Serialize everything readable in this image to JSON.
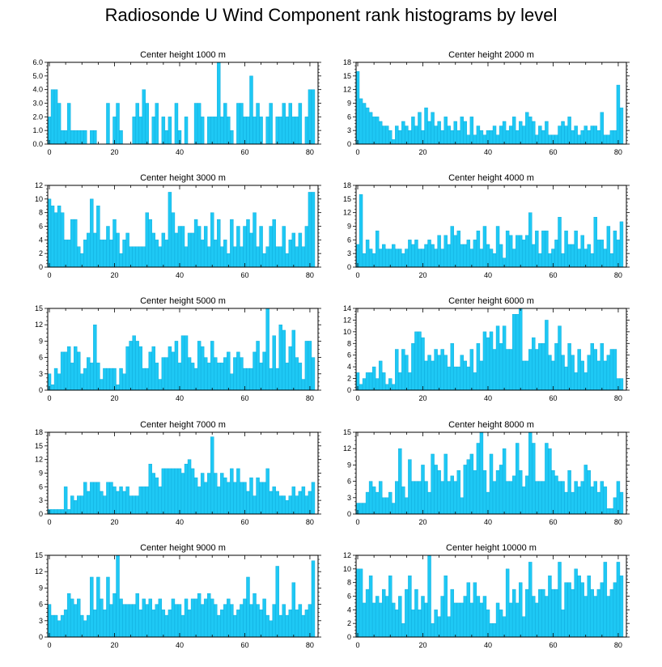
{
  "title": "Radiosonde U Wind Component rank histograms by level",
  "colors": {
    "bar": "#1ec8f4",
    "bar_edge": "#0aa7d8",
    "axis": "#000000"
  },
  "chart_data": [
    {
      "type": "bar",
      "title": "Center height 1000 m",
      "xticks": [
        0,
        20,
        40,
        60,
        80
      ],
      "ylim": [
        0,
        6
      ],
      "yticks": [
        0,
        1,
        2,
        3,
        4,
        5,
        6
      ],
      "ytick_labels": [
        "0.0",
        "1.0",
        "2.0",
        "3.0",
        "4.0",
        "5.0",
        "6.0"
      ],
      "values": [
        2,
        4,
        4,
        3,
        1,
        1,
        3,
        1,
        1,
        1,
        1,
        1,
        0,
        1,
        1,
        0,
        0,
        0,
        3,
        0,
        2,
        3,
        1,
        0,
        0,
        0,
        2,
        3,
        2,
        4,
        3,
        0,
        2,
        3,
        0,
        2,
        1,
        2,
        0,
        3,
        1,
        0,
        2,
        0,
        0,
        3,
        3,
        2,
        0,
        2,
        2,
        2,
        6,
        2,
        3,
        2,
        1,
        0,
        3,
        3,
        2,
        2,
        5,
        2,
        3,
        2,
        0,
        2,
        3,
        0,
        2,
        2,
        3,
        2,
        3,
        2,
        2,
        3,
        0,
        2,
        4,
        4
      ]
    },
    {
      "type": "bar",
      "title": "Center height 2000 m",
      "xticks": [
        0,
        20,
        40,
        60,
        80
      ],
      "ylim": [
        0,
        18
      ],
      "yticks": [
        0,
        3,
        6,
        9,
        12,
        15,
        18
      ],
      "values": [
        16,
        10,
        9,
        8,
        7,
        6,
        6,
        5,
        4,
        4,
        3,
        1,
        4,
        3,
        5,
        4,
        3,
        6,
        4,
        7,
        3,
        8,
        5,
        7,
        4,
        5,
        3,
        6,
        4,
        3,
        5,
        3,
        6,
        5,
        2,
        6,
        2,
        4,
        3,
        2,
        3,
        3,
        4,
        2,
        4,
        5,
        3,
        4,
        6,
        3,
        5,
        4,
        7,
        6,
        5,
        2,
        4,
        3,
        5,
        2,
        2,
        2,
        4,
        5,
        4,
        6,
        3,
        4,
        2,
        3,
        4,
        3,
        4,
        4,
        3,
        7,
        2,
        2,
        3,
        3,
        13,
        8
      ]
    },
    {
      "type": "bar",
      "title": "Center height 3000 m",
      "xticks": [
        0,
        20,
        40,
        60,
        80
      ],
      "ylim": [
        0,
        12
      ],
      "yticks": [
        0,
        2,
        4,
        6,
        8,
        10,
        12
      ],
      "values": [
        10,
        9,
        8,
        9,
        8,
        4,
        4,
        7,
        7,
        3,
        2,
        4,
        5,
        10,
        5,
        9,
        4,
        4,
        6,
        4,
        7,
        5,
        2,
        4,
        5,
        3,
        3,
        3,
        3,
        3,
        8,
        7,
        5,
        4,
        3,
        5,
        4,
        11,
        8,
        5,
        6,
        6,
        3,
        5,
        5,
        7,
        6,
        4,
        6,
        3,
        8,
        4,
        7,
        3,
        4,
        2,
        7,
        3,
        6,
        3,
        6,
        7,
        5,
        8,
        3,
        6,
        2,
        3,
        6,
        7,
        3,
        3,
        6,
        2,
        4,
        5,
        3,
        5,
        3,
        6,
        11,
        11
      ]
    },
    {
      "type": "bar",
      "title": "Center height 4000 m",
      "xticks": [
        0,
        20,
        40,
        60,
        80
      ],
      "ylim": [
        0,
        18
      ],
      "yticks": [
        0,
        3,
        6,
        9,
        12,
        15,
        18
      ],
      "values": [
        5,
        16,
        3,
        6,
        4,
        3,
        8,
        4,
        5,
        4,
        4,
        5,
        4,
        4,
        3,
        4,
        6,
        5,
        6,
        4,
        4,
        5,
        6,
        5,
        4,
        7,
        4,
        7,
        5,
        9,
        7,
        8,
        5,
        5,
        6,
        4,
        6,
        8,
        4,
        9,
        5,
        4,
        3,
        9,
        5,
        2,
        8,
        7,
        4,
        7,
        7,
        6,
        7,
        12,
        5,
        8,
        3,
        8,
        8,
        3,
        4,
        6,
        11,
        3,
        8,
        5,
        5,
        8,
        4,
        7,
        4,
        5,
        3,
        11,
        6,
        6,
        4,
        9,
        3,
        8,
        6,
        10
      ]
    },
    {
      "type": "bar",
      "title": "Center height 5000 m",
      "xticks": [
        0,
        20,
        40,
        60,
        80
      ],
      "ylim": [
        0,
        15
      ],
      "yticks": [
        0,
        3,
        6,
        9,
        12,
        15
      ],
      "values": [
        3,
        1,
        4,
        3,
        7,
        7,
        8,
        5,
        8,
        7,
        3,
        4,
        6,
        5,
        12,
        5,
        2,
        4,
        4,
        4,
        4,
        1,
        4,
        3,
        8,
        9,
        10,
        9,
        8,
        4,
        4,
        7,
        8,
        5,
        2,
        6,
        6,
        8,
        7,
        9,
        5,
        10,
        10,
        6,
        5,
        4,
        9,
        8,
        6,
        5,
        9,
        6,
        5,
        5,
        6,
        7,
        3,
        6,
        7,
        6,
        4,
        4,
        4,
        7,
        9,
        5,
        7,
        15,
        4,
        10,
        4,
        12,
        11,
        5,
        8,
        11,
        6,
        5,
        2,
        9,
        9,
        6
      ]
    },
    {
      "type": "bar",
      "title": "Center height 6000 m",
      "xticks": [
        0,
        20,
        40,
        60,
        80
      ],
      "ylim": [
        0,
        14
      ],
      "yticks": [
        0,
        2,
        4,
        6,
        8,
        10,
        12,
        14
      ],
      "values": [
        3,
        1,
        2,
        3,
        3,
        4,
        2,
        5,
        3,
        1,
        2,
        1,
        7,
        3,
        7,
        6,
        3,
        8,
        10,
        10,
        9,
        5,
        6,
        5,
        7,
        6,
        7,
        6,
        4,
        8,
        4,
        4,
        6,
        5,
        4,
        7,
        3,
        8,
        5,
        10,
        9,
        10,
        7,
        11,
        8,
        11,
        7,
        7,
        13,
        13,
        14,
        5,
        5,
        7,
        9,
        7,
        8,
        8,
        12,
        6,
        5,
        8,
        11,
        6,
        4,
        8,
        6,
        3,
        7,
        5,
        3,
        6,
        8,
        7,
        5,
        8,
        5,
        6,
        7,
        7,
        2,
        2
      ]
    },
    {
      "type": "bar",
      "title": "Center height 7000 m",
      "xticks": [
        0,
        20,
        40,
        60,
        80
      ],
      "ylim": [
        0,
        18
      ],
      "yticks": [
        0,
        3,
        6,
        9,
        12,
        15,
        18
      ],
      "values": [
        1,
        1,
        1,
        1,
        1,
        6,
        1,
        4,
        3,
        4,
        4,
        7,
        5,
        7,
        7,
        7,
        5,
        4,
        7,
        7,
        6,
        5,
        6,
        5,
        6,
        4,
        4,
        4,
        6,
        6,
        6,
        11,
        9,
        8,
        6,
        10,
        10,
        10,
        10,
        10,
        10,
        9,
        11,
        12,
        10,
        8,
        6,
        9,
        7,
        9,
        17,
        9,
        6,
        9,
        8,
        7,
        10,
        7,
        10,
        7,
        7,
        5,
        8,
        4,
        8,
        7,
        7,
        10,
        5,
        6,
        5,
        4,
        4,
        3,
        4,
        6,
        4,
        5,
        6,
        4,
        5,
        7
      ]
    },
    {
      "type": "bar",
      "title": "Center height 8000 m",
      "xticks": [
        0,
        20,
        40,
        60,
        80
      ],
      "ylim": [
        0,
        15
      ],
      "yticks": [
        0,
        3,
        6,
        9,
        12,
        15
      ],
      "values": [
        2,
        2,
        2,
        4,
        6,
        5,
        4,
        6,
        3,
        3,
        4,
        2,
        6,
        12,
        5,
        3,
        10,
        6,
        6,
        6,
        9,
        6,
        4,
        11,
        9,
        8,
        6,
        11,
        6,
        7,
        6,
        8,
        3,
        9,
        10,
        11,
        8,
        13,
        15,
        8,
        4,
        11,
        6,
        8,
        9,
        12,
        6,
        6,
        7,
        13,
        8,
        5,
        7,
        15,
        13,
        6,
        6,
        6,
        13,
        12,
        8,
        7,
        6,
        6,
        4,
        8,
        4,
        6,
        5,
        6,
        9,
        8,
        5,
        6,
        4,
        6,
        5,
        1,
        1,
        3,
        6,
        4
      ]
    },
    {
      "type": "bar",
      "title": "Center height 9000 m",
      "xticks": [
        0,
        20,
        40,
        60,
        80
      ],
      "ylim": [
        0,
        15
      ],
      "yticks": [
        0,
        3,
        6,
        9,
        12,
        15
      ],
      "values": [
        6,
        4,
        4,
        3,
        4,
        5,
        8,
        7,
        6,
        7,
        4,
        3,
        4,
        11,
        5,
        11,
        7,
        5,
        11,
        6,
        8,
        15,
        7,
        6,
        6,
        6,
        6,
        8,
        5,
        7,
        6,
        7,
        5,
        6,
        7,
        5,
        4,
        5,
        7,
        6,
        6,
        4,
        7,
        5,
        7,
        7,
        8,
        6,
        7,
        8,
        7,
        6,
        4,
        5,
        6,
        7,
        6,
        4,
        5,
        6,
        7,
        11,
        6,
        8,
        6,
        5,
        7,
        4,
        3,
        6,
        13,
        4,
        6,
        4,
        5,
        10,
        5,
        6,
        4,
        5,
        6,
        14
      ]
    },
    {
      "type": "bar",
      "title": "Center height 10000 m",
      "xticks": [
        0,
        20,
        40,
        60,
        80
      ],
      "ylim": [
        0,
        12
      ],
      "yticks": [
        0,
        2,
        4,
        6,
        8,
        10,
        12
      ],
      "values": [
        10,
        10,
        5,
        7,
        9,
        5,
        6,
        5,
        7,
        6,
        9,
        5,
        4,
        6,
        2,
        7,
        9,
        4,
        7,
        4,
        6,
        5,
        12,
        2,
        4,
        3,
        6,
        9,
        3,
        7,
        5,
        5,
        5,
        6,
        8,
        5,
        8,
        6,
        5,
        6,
        4,
        2,
        2,
        5,
        4,
        3,
        10,
        5,
        7,
        5,
        8,
        3,
        7,
        11,
        6,
        5,
        7,
        7,
        6,
        9,
        7,
        7,
        11,
        4,
        8,
        8,
        7,
        10,
        9,
        8,
        6,
        9,
        7,
        6,
        7,
        8,
        11,
        6,
        7,
        8,
        11,
        9
      ]
    }
  ]
}
